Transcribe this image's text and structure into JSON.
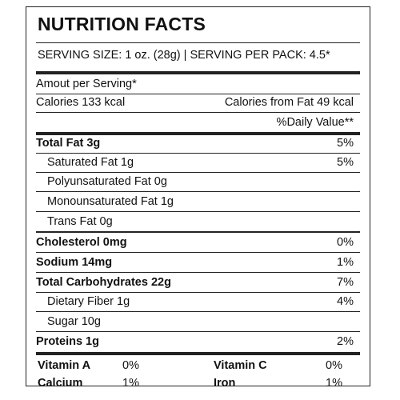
{
  "title": "NUTRITION FACTS",
  "serving_line": "SERVING SIZE: 1 oz. (28g) | SERVING PER PACK: 4.5*",
  "amount_per_serving": "Amout per Serving*",
  "calories": "Calories 133 kcal",
  "calories_from_fat": "Calories from Fat 49 kcal",
  "daily_value_header": "%Daily Value**",
  "nutrients": [
    {
      "name": "Total Fat 3g",
      "dv": "5%"
    },
    {
      "name": "Saturated Fat 1g",
      "dv": "5%"
    },
    {
      "name": "Polyunsaturated Fat 0g",
      "dv": ""
    },
    {
      "name": "Monounsaturated Fat 1g",
      "dv": ""
    },
    {
      "name": "Trans Fat 0g",
      "dv": ""
    },
    {
      "name": "Cholesterol 0mg",
      "dv": "0%"
    },
    {
      "name": "Sodium 14mg",
      "dv": "1%"
    },
    {
      "name": "Total Carbohydrates 22g",
      "dv": "7%"
    },
    {
      "name": "Dietary Fiber 1g",
      "dv": "4%"
    },
    {
      "name": "Sugar 10g",
      "dv": ""
    },
    {
      "name": "Proteins 1g",
      "dv": "2%"
    }
  ],
  "vitamins": [
    {
      "name": "Vitamin A",
      "value": "0%"
    },
    {
      "name": "Vitamin C",
      "value": "0%"
    },
    {
      "name": "Calcium",
      "value": "1%"
    },
    {
      "name": "Iron",
      "value": "1%"
    }
  ]
}
